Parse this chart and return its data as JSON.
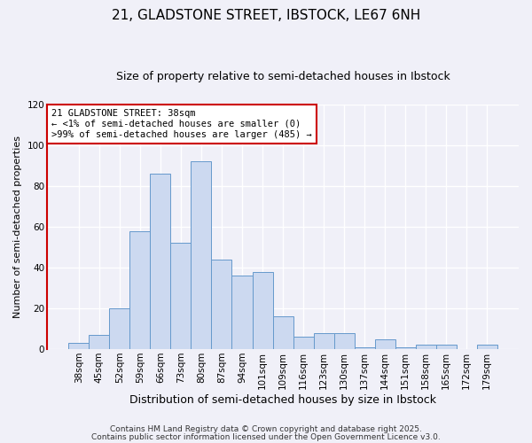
{
  "title": "21, GLADSTONE STREET, IBSTOCK, LE67 6NH",
  "subtitle": "Size of property relative to semi-detached houses in Ibstock",
  "xlabel": "Distribution of semi-detached houses by size in Ibstock",
  "ylabel": "Number of semi-detached properties",
  "categories": [
    "38sqm",
    "45sqm",
    "52sqm",
    "59sqm",
    "66sqm",
    "73sqm",
    "80sqm",
    "87sqm",
    "94sqm",
    "101sqm",
    "109sqm",
    "116sqm",
    "123sqm",
    "130sqm",
    "137sqm",
    "144sqm",
    "151sqm",
    "158sqm",
    "165sqm",
    "172sqm",
    "179sqm"
  ],
  "values": [
    3,
    7,
    20,
    58,
    86,
    52,
    92,
    44,
    36,
    38,
    16,
    6,
    8,
    8,
    1,
    5,
    1,
    2,
    2,
    0,
    2
  ],
  "bar_color": "#ccd9f0",
  "bar_edge_color": "#6699cc",
  "ylim": [
    0,
    120
  ],
  "yticks": [
    0,
    20,
    40,
    60,
    80,
    100,
    120
  ],
  "background_color": "#f0f0f8",
  "grid_color": "#ffffff",
  "annotation_title": "21 GLADSTONE STREET: 38sqm",
  "annotation_line1": "← <1% of semi-detached houses are smaller (0)",
  "annotation_line2": ">99% of semi-detached houses are larger (485) →",
  "annotation_box_color": "#ffffff",
  "annotation_box_edge": "#cc0000",
  "left_spine_color": "#cc0000",
  "footer1": "Contains HM Land Registry data © Crown copyright and database right 2025.",
  "footer2": "Contains public sector information licensed under the Open Government Licence v3.0.",
  "title_fontsize": 11,
  "subtitle_fontsize": 9,
  "xlabel_fontsize": 9,
  "ylabel_fontsize": 8,
  "tick_fontsize": 7.5,
  "annotation_fontsize": 7.5,
  "footer_fontsize": 6.5
}
